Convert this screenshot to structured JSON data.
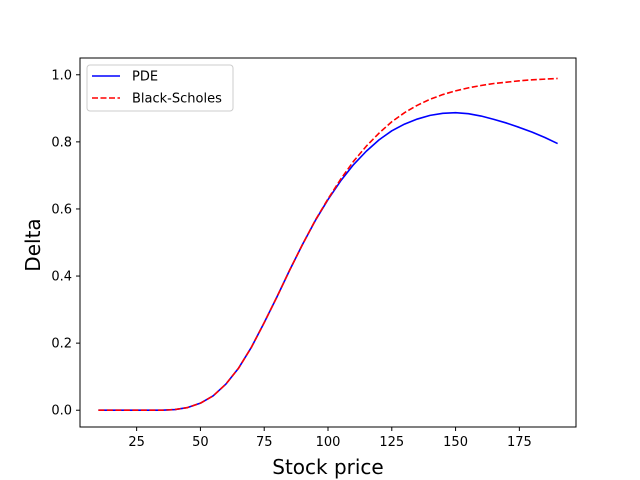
{
  "chart_data": {
    "type": "line",
    "title": "",
    "xlabel": "Stock price",
    "ylabel": "Delta",
    "xlim": [
      2.8,
      197.2
    ],
    "ylim": [
      -0.05,
      1.05
    ],
    "x_ticks": [
      25,
      50,
      75,
      100,
      125,
      150,
      175
    ],
    "y_ticks": [
      0.0,
      0.2,
      0.4,
      0.6,
      0.8,
      1.0
    ],
    "x_tick_labels": [
      "25",
      "50",
      "75",
      "100",
      "125",
      "150",
      "175"
    ],
    "y_tick_labels": [
      "0.0",
      "0.2",
      "0.4",
      "0.6",
      "0.8",
      "1.0"
    ],
    "grid": false,
    "legend_position": "upper-left",
    "x": [
      10,
      15,
      20,
      25,
      30,
      35,
      40,
      45,
      50,
      55,
      60,
      65,
      70,
      75,
      80,
      85,
      90,
      95,
      100,
      105,
      110,
      115,
      120,
      125,
      130,
      135,
      140,
      145,
      150,
      155,
      160,
      165,
      170,
      175,
      180,
      185,
      190
    ],
    "series": [
      {
        "name": "PDE",
        "color": "#0000ff",
        "style": "solid",
        "values": [
          0.0,
          0.0,
          0.0,
          0.0,
          0.0,
          0.0,
          0.002,
          0.008,
          0.021,
          0.043,
          0.078,
          0.126,
          0.188,
          0.261,
          0.338,
          0.418,
          0.494,
          0.565,
          0.628,
          0.684,
          0.732,
          0.772,
          0.806,
          0.833,
          0.853,
          0.868,
          0.879,
          0.885,
          0.887,
          0.884,
          0.877,
          0.867,
          0.856,
          0.843,
          0.829,
          0.813,
          0.795
        ]
      },
      {
        "name": "Black-Scholes",
        "color": "#ff0000",
        "style": "dashed",
        "values": [
          0.0,
          0.0,
          0.0,
          0.0,
          0.0,
          0.0,
          0.002,
          0.008,
          0.021,
          0.043,
          0.078,
          0.126,
          0.188,
          0.261,
          0.338,
          0.418,
          0.494,
          0.566,
          0.63,
          0.689,
          0.742,
          0.787,
          0.826,
          0.86,
          0.887,
          0.909,
          0.927,
          0.941,
          0.952,
          0.961,
          0.968,
          0.974,
          0.978,
          0.982,
          0.985,
          0.987,
          0.989
        ]
      }
    ]
  }
}
